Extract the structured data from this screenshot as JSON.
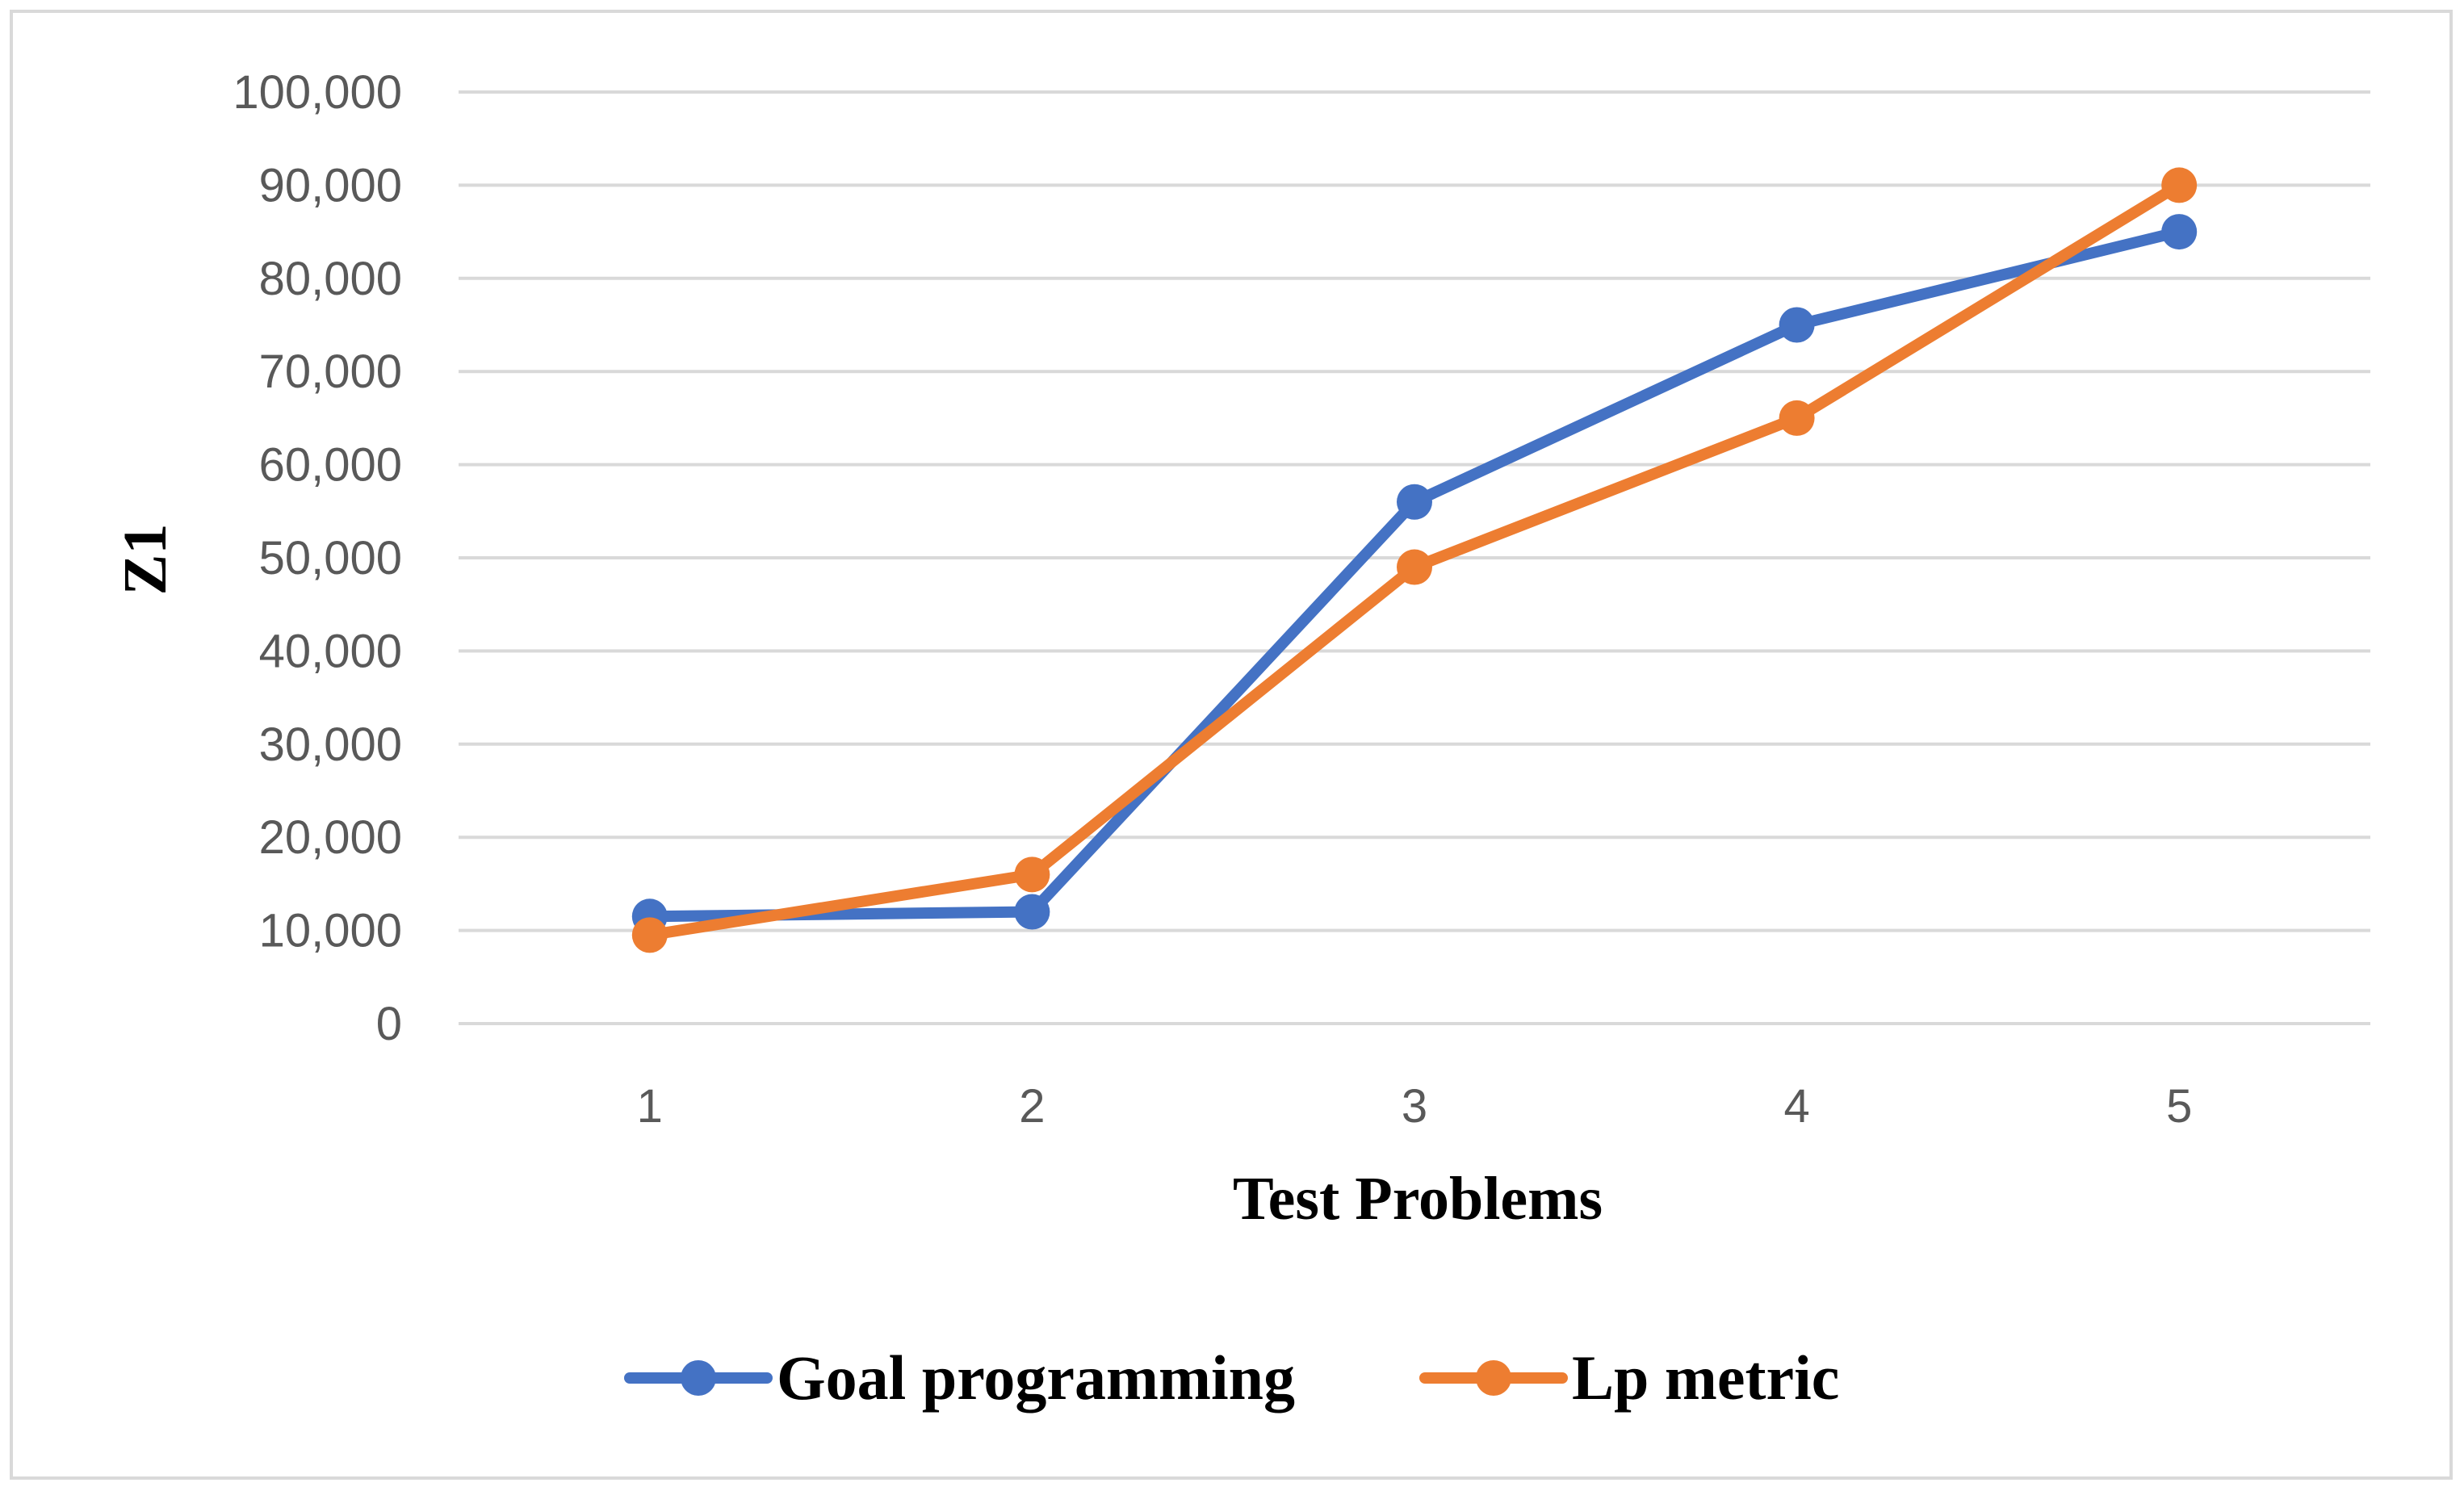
{
  "chart_data": {
    "type": "line",
    "title": "",
    "xlabel": "Test Problems",
    "ylabel": "Z1",
    "categories": [
      "1",
      "2",
      "3",
      "4",
      "5"
    ],
    "ylim": [
      0,
      100000
    ],
    "yticks": [
      0,
      10000,
      20000,
      30000,
      40000,
      50000,
      60000,
      70000,
      80000,
      90000,
      100000
    ],
    "ytick_labels": [
      "0",
      "10,000",
      "20,000",
      "30,000",
      "40,000",
      "50,000",
      "60,000",
      "70,000",
      "80,000",
      "90,000",
      "100,000"
    ],
    "grid": true,
    "legend_position": "bottom",
    "series": [
      {
        "name": "Goal programming",
        "color": "#4472c4",
        "values": [
          11500,
          12000,
          56000,
          75000,
          85000
        ]
      },
      {
        "name": "Lp metric",
        "color": "#ed7d31",
        "values": [
          9500,
          16000,
          49000,
          65000,
          90000
        ]
      }
    ]
  }
}
